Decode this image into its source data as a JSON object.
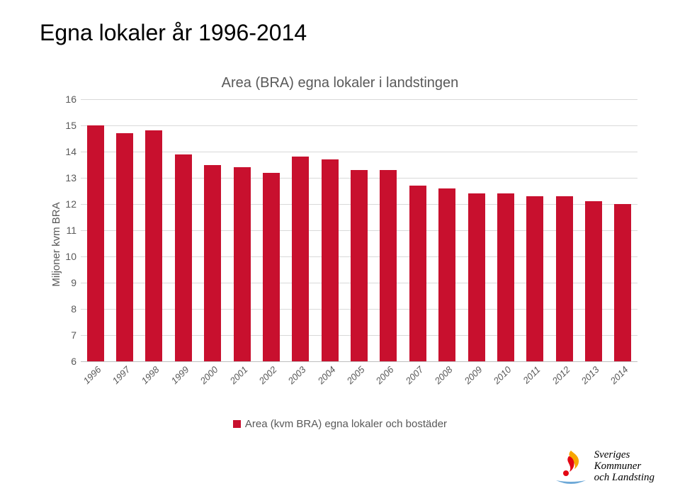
{
  "slide": {
    "title": "Egna lokaler år 1996-2014",
    "title_fontsize": 32,
    "title_color": "#000000",
    "background_color": "#ffffff"
  },
  "chart": {
    "type": "bar",
    "title": "Area (BRA) egna lokaler i landstingen",
    "title_fontsize": 20,
    "title_color": "#595959",
    "y_axis_label": "Miljoner kvm BRA",
    "categories": [
      "1996",
      "1997",
      "1998",
      "1999",
      "2000",
      "2001",
      "2002",
      "2003",
      "2004",
      "2005",
      "2006",
      "2007",
      "2008",
      "2009",
      "2010",
      "2011",
      "2012",
      "2013",
      "2014"
    ],
    "values": [
      15.0,
      14.7,
      14.8,
      13.9,
      13.5,
      13.4,
      13.2,
      13.8,
      13.7,
      13.3,
      13.3,
      12.7,
      12.6,
      12.4,
      12.4,
      12.3,
      12.3,
      12.1,
      12.0
    ],
    "bar_color": "#c8102e",
    "bar_width": 0.58,
    "ylim": [
      6,
      16
    ],
    "ytick_step": 1,
    "yticks": [
      6,
      7,
      8,
      9,
      10,
      11,
      12,
      13,
      14,
      15,
      16
    ],
    "grid_color": "#d9d9d9",
    "axis_line_color": "#bfbfbf",
    "tick_fontsize": 14,
    "tick_color": "#595959",
    "xlabel_fontsize": 13,
    "xlabel_rotation_deg": -45,
    "xlabel_fontstyle": "italic"
  },
  "legend": {
    "swatch_color": "#c8102e",
    "label": "Area (kvm BRA) egna lokaler och bostäder",
    "fontsize": 15,
    "color": "#595959"
  },
  "logo": {
    "line1": "Sveriges",
    "line2": "Kommuner",
    "line3": "och Landsting",
    "flame_outer": "#f7a600",
    "flame_inner": "#e30613",
    "dot": "#e30613",
    "swoosh": "#6ea9d7"
  }
}
